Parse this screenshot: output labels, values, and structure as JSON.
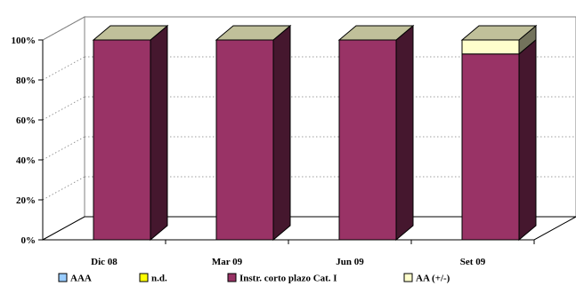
{
  "chart_data": {
    "type": "bar",
    "stacked": true,
    "style": "3d-column",
    "categories": [
      "Dic 08",
      "Mar 09",
      "Jun 09",
      "Set 09"
    ],
    "series": [
      {
        "name": "AAA",
        "color": "#99ccff",
        "values": [
          0,
          0,
          0,
          0
        ]
      },
      {
        "name": "n.d.",
        "color": "#ffff00",
        "values": [
          0,
          0,
          0,
          0
        ]
      },
      {
        "name": "Instr. corto plazo Cat. I",
        "color": "#993366",
        "values": [
          100,
          100,
          100,
          93
        ]
      },
      {
        "name": "AA (+/-)",
        "color": "#ffffcc",
        "values": [
          0,
          0,
          0,
          7
        ]
      }
    ],
    "y_ticks": [
      "0%",
      "20%",
      "40%",
      "60%",
      "80%",
      "100%"
    ],
    "ylim": [
      0,
      100
    ],
    "grid": true,
    "legend_position": "bottom"
  }
}
